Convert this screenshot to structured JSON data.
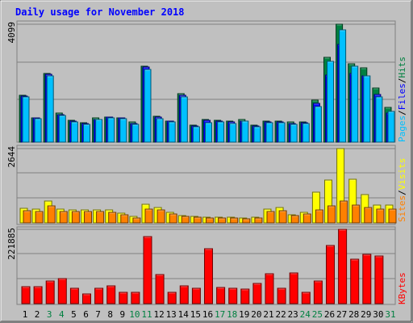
{
  "chart_data": [
    {
      "type": "bar",
      "title": "Daily usage for November 2018",
      "panel": "hits-files-pages",
      "categories": [
        "1",
        "2",
        "3",
        "4",
        "5",
        "6",
        "7",
        "8",
        "9",
        "10",
        "11",
        "12",
        "13",
        "14",
        "15",
        "16",
        "17",
        "18",
        "19",
        "20",
        "21",
        "22",
        "23",
        "24",
        "25",
        "26",
        "27",
        "28",
        "29",
        "30",
        "31"
      ],
      "weekend_days": [
        "3",
        "4",
        "10",
        "11",
        "17",
        "18",
        "24",
        "25",
        "31"
      ],
      "ymax_label": "4099",
      "ylim": [
        0,
        4099
      ],
      "grid": true,
      "axis_labels": [
        "Pages",
        "Files",
        "Hits"
      ],
      "series": [
        {
          "name": "Hits",
          "color": "#008040",
          "values": [
            1640,
            840,
            2390,
            1000,
            750,
            660,
            830,
            880,
            850,
            690,
            2650,
            910,
            740,
            1690,
            590,
            780,
            750,
            720,
            780,
            590,
            730,
            740,
            700,
            710,
            1470,
            2950,
            4099,
            2730,
            2580,
            1890,
            1220
          ]
        },
        {
          "name": "Files",
          "color": "#0000ff",
          "values": [
            1600,
            830,
            2350,
            960,
            730,
            640,
            800,
            860,
            840,
            650,
            2600,
            860,
            720,
            1620,
            560,
            760,
            720,
            690,
            740,
            560,
            700,
            700,
            650,
            680,
            1350,
            2330,
            3400,
            2390,
            2300,
            1650,
            1020
          ]
        },
        {
          "name": "Pages",
          "color": "#00c0ff",
          "values": [
            1560,
            810,
            2300,
            930,
            710,
            620,
            780,
            840,
            820,
            630,
            2520,
            820,
            700,
            1560,
            520,
            680,
            700,
            650,
            720,
            520,
            670,
            660,
            610,
            640,
            1230,
            2820,
            3910,
            2640,
            2290,
            1560,
            1060
          ]
        }
      ]
    },
    {
      "type": "bar",
      "panel": "visits-sites",
      "categories": [
        "1",
        "2",
        "3",
        "4",
        "5",
        "6",
        "7",
        "8",
        "9",
        "10",
        "11",
        "12",
        "13",
        "14",
        "15",
        "16",
        "17",
        "18",
        "19",
        "20",
        "21",
        "22",
        "23",
        "24",
        "25",
        "26",
        "27",
        "28",
        "29",
        "30",
        "31"
      ],
      "ymax_label": "2644",
      "ylim": [
        0,
        2644
      ],
      "grid": true,
      "axis_labels": [
        "Sites",
        "Visits"
      ],
      "series": [
        {
          "name": "Visits",
          "color": "#ffff00",
          "values": [
            520,
            490,
            770,
            500,
            460,
            460,
            470,
            460,
            350,
            220,
            660,
            550,
            380,
            270,
            230,
            190,
            200,
            190,
            180,
            190,
            490,
            540,
            300,
            370,
            1080,
            1510,
            2644,
            1540,
            1000,
            620,
            620
          ]
        },
        {
          "name": "Sites",
          "color": "#ff8000",
          "values": [
            420,
            390,
            590,
            410,
            390,
            390,
            390,
            370,
            300,
            170,
            500,
            450,
            320,
            230,
            190,
            160,
            160,
            160,
            150,
            160,
            400,
            430,
            270,
            310,
            450,
            590,
            780,
            620,
            540,
            480,
            480
          ]
        }
      ]
    },
    {
      "type": "bar",
      "panel": "kbytes",
      "categories": [
        "1",
        "2",
        "3",
        "4",
        "5",
        "6",
        "7",
        "8",
        "9",
        "10",
        "11",
        "12",
        "13",
        "14",
        "15",
        "16",
        "17",
        "18",
        "19",
        "20",
        "21",
        "22",
        "23",
        "24",
        "25",
        "26",
        "27",
        "28",
        "29",
        "30",
        "31"
      ],
      "ymax_label": "221885",
      "ylim": [
        0,
        221885
      ],
      "grid": true,
      "axis_labels": [
        "KBytes"
      ],
      "series": [
        {
          "name": "KBytes",
          "color": "#ff0000",
          "values": [
            51000,
            51000,
            67000,
            75000,
            45000,
            29000,
            47000,
            53000,
            33000,
            33000,
            200000,
            86000,
            33000,
            53000,
            45000,
            164000,
            48000,
            45000,
            43000,
            61000,
            90000,
            47000,
            91000,
            33000,
            67000,
            173000,
            221885,
            132000,
            147000,
            143000,
            0
          ]
        }
      ]
    }
  ]
}
